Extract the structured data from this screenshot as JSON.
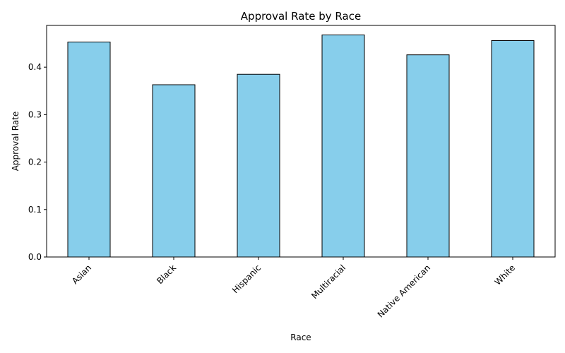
{
  "chart_data": {
    "type": "bar",
    "title": "Approval Rate by Race",
    "xlabel": "Race",
    "ylabel": "Approval Rate",
    "categories": [
      "Asian",
      "Black",
      "Hispanic",
      "Multiracial",
      "Native American",
      "White"
    ],
    "values": [
      0.453,
      0.363,
      0.385,
      0.468,
      0.426,
      0.456
    ],
    "ylim": [
      0,
      0.488
    ],
    "yticks": [
      0.0,
      0.1,
      0.2,
      0.3,
      0.4
    ],
    "ytick_labels": [
      "0.0",
      "0.1",
      "0.2",
      "0.3",
      "0.4"
    ],
    "grid": false,
    "legend": "none",
    "colors": {
      "bar_fill": "#87CEEB",
      "bar_edge": "#000000"
    }
  }
}
